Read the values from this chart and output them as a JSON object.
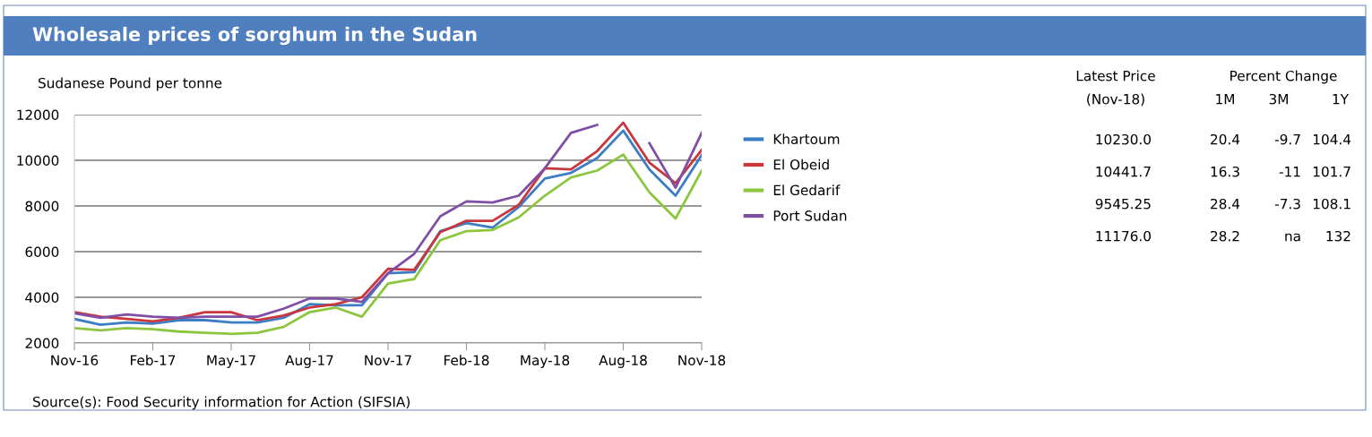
{
  "chart_data": [
    {
      "type": "line",
      "title": "Wholesale prices of sorghum in the Sudan",
      "ylabel": "Sudanese Pound per tonne",
      "categories": [
        "Nov-16",
        null,
        null,
        "Feb-17",
        null,
        null,
        "May-17",
        null,
        null,
        "Aug-17",
        null,
        null,
        "Nov-17",
        null,
        null,
        "Feb-18",
        null,
        null,
        "May-18",
        null,
        null,
        "Aug-18",
        null,
        null,
        "Nov-18"
      ],
      "ylim": [
        2000,
        12000
      ],
      "yticks": [
        2000,
        4000,
        6000,
        8000,
        10000,
        12000
      ],
      "grid": "y",
      "legend": "right",
      "line_style": "solid",
      "marker": "none",
      "series": [
        {
          "name": "Khartoum",
          "color": "#3c7dc4",
          "values": [
            3050,
            2800,
            2900,
            2850,
            3000,
            3000,
            2900,
            2900,
            3100,
            3700,
            3650,
            3650,
            5050,
            5100,
            6900,
            7250,
            7050,
            7950,
            9200,
            9450,
            10100,
            11300,
            9600,
            8450,
            10230
          ]
        },
        {
          "name": "El Obeid",
          "color": "#c9363b",
          "values": [
            3350,
            3150,
            3050,
            2950,
            3100,
            3350,
            3350,
            3000,
            3200,
            3550,
            3700,
            4000,
            5250,
            5200,
            6850,
            7350,
            7350,
            8050,
            9650,
            9600,
            10400,
            11650,
            9900,
            9000,
            10450
          ]
        },
        {
          "name": "El Gedarif",
          "color": "#8cc63f",
          "values": [
            2650,
            2550,
            2650,
            2600,
            2500,
            2450,
            2400,
            2450,
            2700,
            3350,
            3550,
            3150,
            4600,
            4800,
            6500,
            6900,
            6950,
            7500,
            8450,
            9250,
            9550,
            10250,
            8600,
            7450,
            9550
          ]
        },
        {
          "name": "Port Sudan",
          "color": "#7f4fa6",
          "values": [
            3300,
            3100,
            3250,
            3150,
            3100,
            3150,
            3150,
            3150,
            3500,
            3950,
            3950,
            3800,
            5050,
            5900,
            7550,
            8200,
            8150,
            8450,
            9650,
            11200,
            11550,
            null,
            10750,
            8800,
            11200
          ]
        }
      ],
      "annotations": [
        "Source(s): Food Security information for Action (SIFSIA)"
      ]
    },
    {
      "type": "other",
      "annotations": [
        "Latest Price",
        "(Nov-18)",
        "Percent Change",
        "1M",
        "3M",
        "1Y",
        "10230.0",
        "20.4",
        "-9.7",
        "104.4",
        "10441.7",
        "16.3",
        "-11",
        "101.7",
        "9545.25",
        "28.4",
        "-7.3",
        "108.1",
        "11176.0",
        "28.2",
        "na",
        "132"
      ]
    }
  ]
}
